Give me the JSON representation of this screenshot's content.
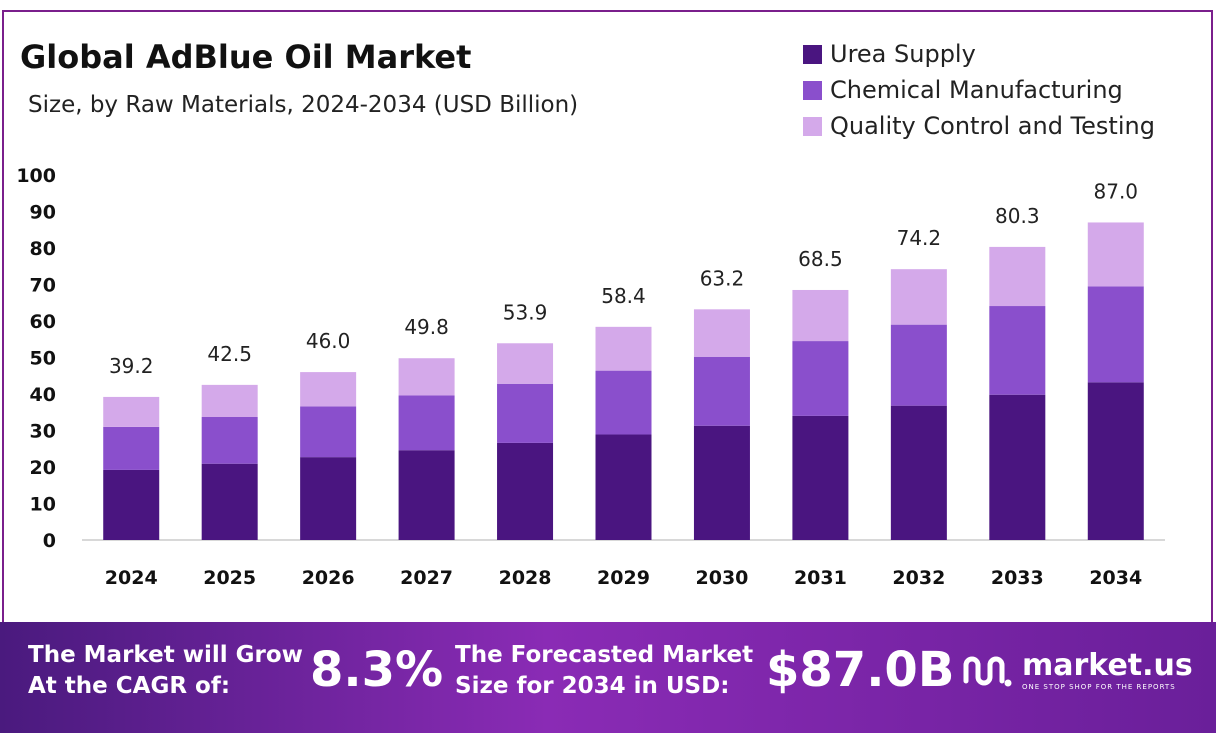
{
  "header": {
    "title": "Global AdBlue Oil Market",
    "subtitle": "Size, by Raw Materials, 2024-2034 (USD Billion)"
  },
  "colors": {
    "urea": "#4a1580",
    "chemical": "#8a4fcc",
    "quality": "#d4a9ea",
    "footer_start": "#4a1a7e",
    "footer_mid": "#8a2bb5"
  },
  "chart_data": {
    "type": "bar",
    "stacked": true,
    "title": "Global AdBlue Oil Market",
    "subtitle": "Size, by Raw Materials, 2024-2034 (USD Billion)",
    "xlabel": "",
    "ylabel": "",
    "ylim": [
      0,
      100
    ],
    "yticks": [
      0,
      10,
      20,
      30,
      40,
      50,
      60,
      70,
      80,
      90,
      100
    ],
    "legend_position": "top-right",
    "categories": [
      "2024",
      "2025",
      "2026",
      "2027",
      "2028",
      "2029",
      "2030",
      "2031",
      "2032",
      "2033",
      "2034"
    ],
    "series": [
      {
        "name": "Urea Supply",
        "values": [
          19.2,
          20.9,
          22.7,
          24.6,
          26.6,
          28.9,
          31.3,
          34.0,
          36.8,
          39.8,
          43.2
        ]
      },
      {
        "name": "Chemical Manufacturing",
        "values": [
          11.8,
          12.8,
          13.9,
          15.0,
          16.2,
          17.5,
          18.9,
          20.5,
          22.2,
          24.3,
          26.3
        ]
      },
      {
        "name": "Quality Control and Testing",
        "values": [
          8.2,
          8.8,
          9.4,
          10.2,
          11.1,
          12.0,
          13.0,
          14.0,
          15.2,
          16.2,
          17.5
        ]
      }
    ],
    "totals": [
      "39.2",
      "42.5",
      "46.0",
      "49.8",
      "53.9",
      "58.4",
      "63.2",
      "68.5",
      "74.2",
      "80.3",
      "87.0"
    ]
  },
  "footer": {
    "cagr_label_line1": "The Market will Grow",
    "cagr_label_line2": "At the CAGR of:",
    "cagr_value": "8.3%",
    "size_label_line1": "The Forecasted Market",
    "size_label_line2": "Size for 2034 in USD:",
    "size_value": "$87.0B",
    "brand_name": "market.us",
    "brand_tagline": "ONE STOP SHOP FOR THE REPORTS",
    "brand_icon": "market-us-logo-icon"
  }
}
